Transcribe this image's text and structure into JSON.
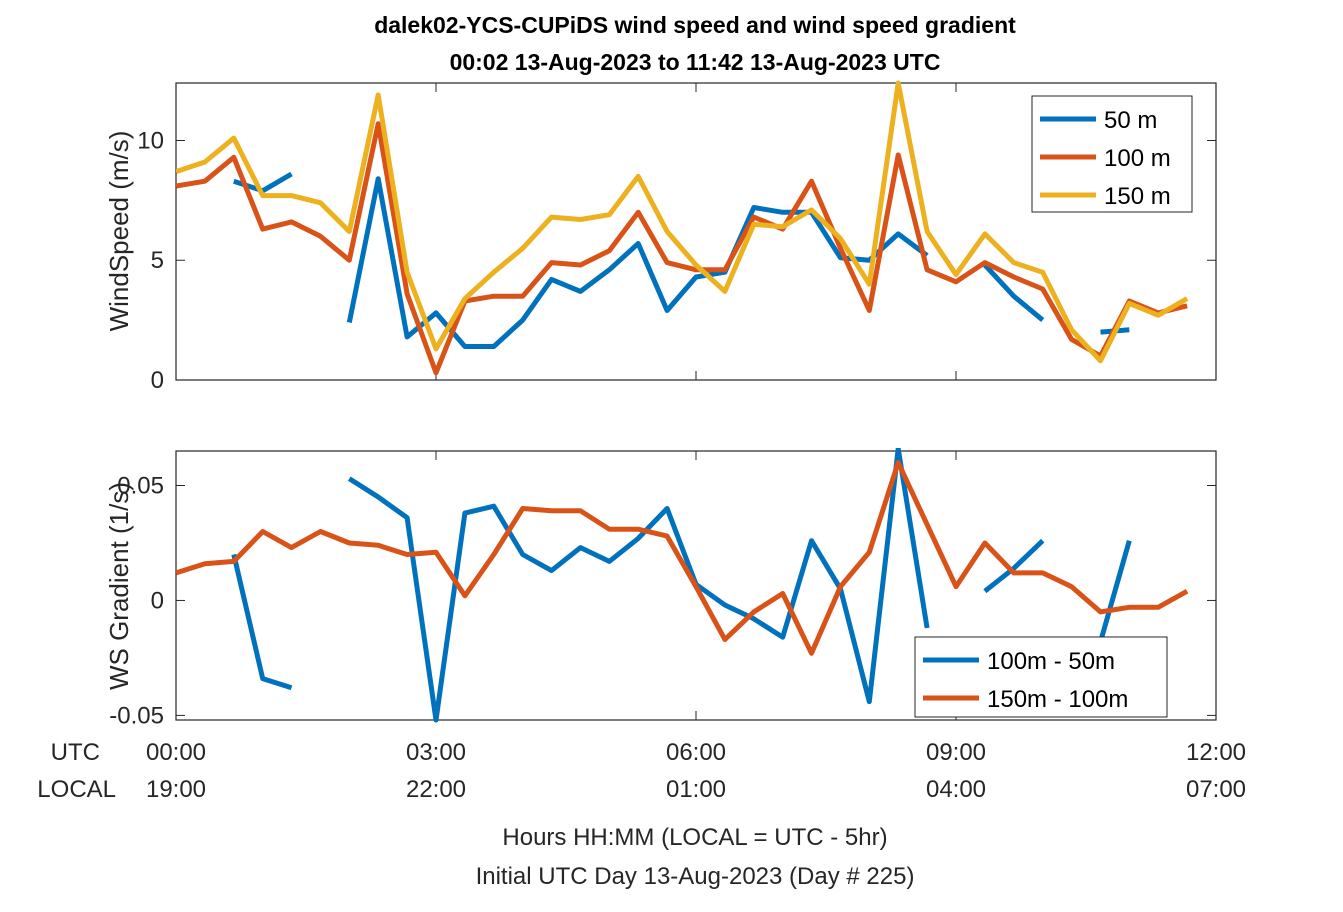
{
  "title_line1": "dalek02-YCS-CUPiDS  wind speed and wind speed gradient",
  "title_line2": "00:02 13-Aug-2023 to 11:42 13-Aug-2023  UTC",
  "x_label_utc": "UTC",
  "x_label_local": "LOCAL",
  "x_ticks_utc": [
    "00:00",
    "03:00",
    "06:00",
    "09:00",
    "12:00"
  ],
  "x_ticks_local": [
    "19:00",
    "22:00",
    "01:00",
    "04:00",
    "07:00"
  ],
  "footer_line1": "Hours HH:MM  (LOCAL = UTC - 5hr)",
  "footer_line2": "Initial UTC Day 13-Aug-2023 (Day # 225)",
  "colors": {
    "blue": "#0072BD",
    "orange": "#D95319",
    "yellow": "#EDB120"
  },
  "chart_data": [
    {
      "type": "line",
      "ylabel": "WindSpeed (m/s)",
      "xlim": [
        0,
        12
      ],
      "ylim": [
        0,
        12.4
      ],
      "yticks": [
        0,
        5,
        10
      ],
      "ytick_labels": [
        "0",
        "5",
        "10"
      ],
      "x": [
        0.0,
        0.333,
        0.667,
        1.0,
        1.333,
        1.667,
        2.0,
        2.333,
        2.667,
        3.0,
        3.333,
        3.667,
        4.0,
        4.333,
        4.667,
        5.0,
        5.333,
        5.667,
        6.0,
        6.333,
        6.667,
        7.0,
        7.333,
        7.667,
        8.0,
        8.333,
        8.667,
        9.0,
        9.333,
        9.667,
        10.0,
        10.333,
        10.667,
        11.0,
        11.333,
        11.667
      ],
      "legend_position": "top-right",
      "series": [
        {
          "name": "50 m",
          "color": "blue",
          "values": [
            null,
            null,
            8.3,
            7.9,
            8.6,
            null,
            2.4,
            8.4,
            1.8,
            2.8,
            1.4,
            1.4,
            2.5,
            4.2,
            3.7,
            4.6,
            5.7,
            2.9,
            4.3,
            4.5,
            7.2,
            7.0,
            7.0,
            5.1,
            5.0,
            6.1,
            5.2,
            null,
            4.8,
            3.5,
            2.5,
            null,
            2.0,
            2.1,
            null,
            null
          ]
        },
        {
          "name": "100 m",
          "color": "orange",
          "values": [
            8.1,
            8.3,
            9.3,
            6.3,
            6.6,
            6.0,
            5.0,
            10.7,
            3.6,
            0.3,
            3.3,
            3.5,
            3.5,
            4.9,
            4.8,
            5.4,
            7.0,
            4.9,
            4.6,
            4.6,
            6.8,
            6.3,
            8.3,
            5.5,
            2.9,
            9.4,
            4.6,
            4.1,
            4.9,
            4.3,
            3.8,
            1.7,
            1.0,
            3.3,
            2.8,
            3.1
          ]
        },
        {
          "name": "150 m",
          "color": "yellow",
          "values": [
            8.7,
            9.1,
            10.1,
            7.7,
            7.7,
            7.4,
            6.2,
            11.9,
            4.5,
            1.3,
            3.4,
            4.5,
            5.5,
            6.8,
            6.7,
            6.9,
            8.5,
            6.2,
            4.8,
            3.7,
            6.5,
            6.4,
            7.1,
            5.9,
            4.0,
            12.4,
            6.2,
            4.4,
            6.1,
            4.9,
            4.5,
            2.1,
            0.8,
            3.2,
            2.7,
            3.4
          ]
        }
      ]
    },
    {
      "type": "line",
      "ylabel": "WS Gradient (1/s)",
      "xlim": [
        0,
        12
      ],
      "ylim": [
        -0.052,
        0.065
      ],
      "yticks": [
        -0.05,
        0,
        0.05
      ],
      "ytick_labels": [
        "-0.05",
        "0",
        "0.05"
      ],
      "x": [
        0.0,
        0.333,
        0.667,
        1.0,
        1.333,
        1.667,
        2.0,
        2.333,
        2.667,
        3.0,
        3.333,
        3.667,
        4.0,
        4.333,
        4.667,
        5.0,
        5.333,
        5.667,
        6.0,
        6.333,
        6.667,
        7.0,
        7.333,
        7.667,
        8.0,
        8.333,
        8.667,
        9.0,
        9.333,
        9.667,
        10.0,
        10.333,
        10.667,
        11.0,
        11.333,
        11.667
      ],
      "legend_position": "bottom-right",
      "series": [
        {
          "name": "100m - 50m",
          "color": "blue",
          "values": [
            null,
            null,
            0.02,
            -0.034,
            -0.038,
            null,
            0.053,
            0.045,
            0.036,
            -0.052,
            0.038,
            0.041,
            0.02,
            0.013,
            0.023,
            0.017,
            0.027,
            0.04,
            0.007,
            -0.002,
            -0.008,
            -0.016,
            0.026,
            0.005,
            -0.044,
            0.066,
            -0.012,
            null,
            0.004,
            0.014,
            0.026,
            null,
            -0.018,
            0.026,
            null,
            null
          ]
        },
        {
          "name": "150m - 100m",
          "color": "orange",
          "values": [
            0.012,
            0.016,
            0.017,
            0.03,
            0.023,
            0.03,
            0.025,
            0.024,
            0.02,
            0.021,
            0.002,
            0.02,
            0.04,
            0.039,
            0.039,
            0.031,
            0.031,
            0.028,
            0.006,
            -0.017,
            -0.005,
            0.003,
            -0.023,
            0.006,
            0.021,
            0.06,
            0.033,
            0.006,
            0.025,
            0.012,
            0.012,
            0.006,
            -0.005,
            -0.003,
            -0.003,
            0.004
          ]
        }
      ]
    }
  ]
}
